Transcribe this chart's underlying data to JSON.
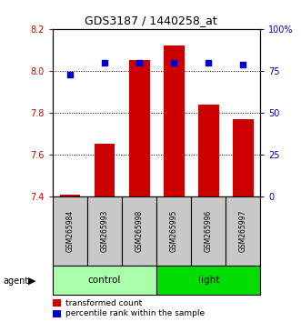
{
  "title": "GDS3187 / 1440258_at",
  "samples": [
    "GSM265984",
    "GSM265993",
    "GSM265998",
    "GSM265995",
    "GSM265996",
    "GSM265997"
  ],
  "transformed_count": [
    7.41,
    7.65,
    8.05,
    8.12,
    7.84,
    7.77
  ],
  "percentile_rank": [
    73,
    80,
    80,
    80,
    80,
    79
  ],
  "ylim_left": [
    7.4,
    8.2
  ],
  "ylim_right": [
    0,
    100
  ],
  "yticks_left": [
    7.4,
    7.6,
    7.8,
    8.0,
    8.2
  ],
  "yticks_right": [
    0,
    25,
    50,
    75,
    100
  ],
  "ytick_labels_right": [
    "0",
    "25",
    "50",
    "75",
    "100%"
  ],
  "groups": [
    {
      "name": "control",
      "indices": [
        0,
        1,
        2
      ],
      "color": "#aaffaa"
    },
    {
      "name": "light",
      "indices": [
        3,
        4,
        5
      ],
      "color": "#00dd00"
    }
  ],
  "bar_color": "#CC0000",
  "dot_color": "#0000CC",
  "bar_width": 0.6,
  "bg_color": "#FFFFFF",
  "plot_bg": "#FFFFFF",
  "sample_box_color": "#C8C8C8",
  "legend_items": [
    {
      "label": "transformed count",
      "color": "#CC0000"
    },
    {
      "label": "percentile rank within the sample",
      "color": "#0000CC"
    }
  ],
  "left_tick_color": "#CC0000",
  "right_tick_color": "#0000CC"
}
